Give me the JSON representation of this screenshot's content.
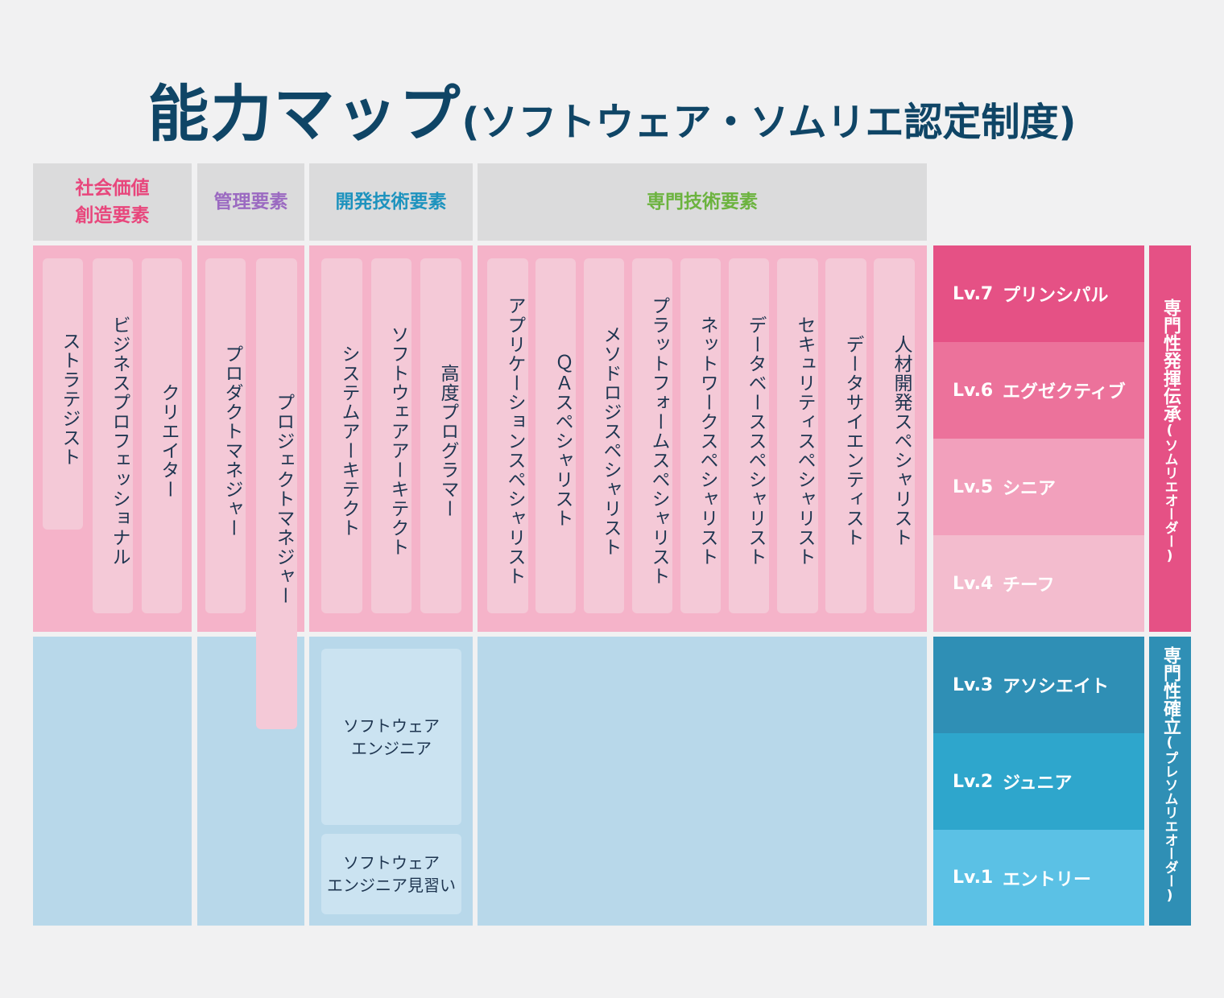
{
  "title": {
    "main": "能力マップ",
    "sub": "(ソフトウェア・ソムリエ認定制度)"
  },
  "colors": {
    "social": "#e8467c",
    "management": "#9b6ac1",
    "development": "#1e93be",
    "specialist": "#6cb33f",
    "lv7": "#e55185",
    "lv6": "#ec729b",
    "lv5": "#f2a0bc",
    "lv4": "#f3bcce",
    "lv3": "#2f8fb5",
    "lv2": "#2ea6cc",
    "lv1": "#5bc1e5"
  },
  "categories": {
    "social": "社会価値\n創造要素",
    "management": "管理要素",
    "development": "開発技術要素",
    "specialist": "専門技術要素"
  },
  "roles": {
    "social": [
      "ストラテジスト",
      "ビジネスプロフェッショナル",
      "クリエイター"
    ],
    "management": [
      "プロダクトマネジャー",
      "プロジェクトマネジャー"
    ],
    "development": [
      "システムアーキテクト",
      "ソフトウェアアーキテクト",
      "高度プログラマー"
    ],
    "specialist": [
      "アプリケーションスペシャリスト",
      "ＱＡスペシャリスト",
      "メソドロジスペシャリスト",
      "プラットフォームスペシャリスト",
      "ネットワークスペシャリスト",
      "データベーススペシャリスト",
      "セキュリティスペシャリスト",
      "データサイエンティスト",
      "人材開発スペシャリスト"
    ]
  },
  "engineers": [
    "ソフトウェア\nエンジニア",
    "ソフトウェア\nエンジニア見習い"
  ],
  "levels": [
    {
      "no": "Lv.7",
      "name": "プリンシパル"
    },
    {
      "no": "Lv.6",
      "name": "エグゼクティブ"
    },
    {
      "no": "Lv.5",
      "name": "シニア"
    },
    {
      "no": "Lv.4",
      "name": "チーフ"
    },
    {
      "no": "Lv.3",
      "name": "アソシエイト"
    },
    {
      "no": "Lv.2",
      "name": "ジュニア"
    },
    {
      "no": "Lv.1",
      "name": "エントリー"
    }
  ],
  "groups": {
    "upper": {
      "main": "専門性発揮伝承",
      "paren": "(ソムリエオーダー)"
    },
    "lower": {
      "main": "専門性確立",
      "paren": "(プレソムリエオーダー)"
    }
  }
}
